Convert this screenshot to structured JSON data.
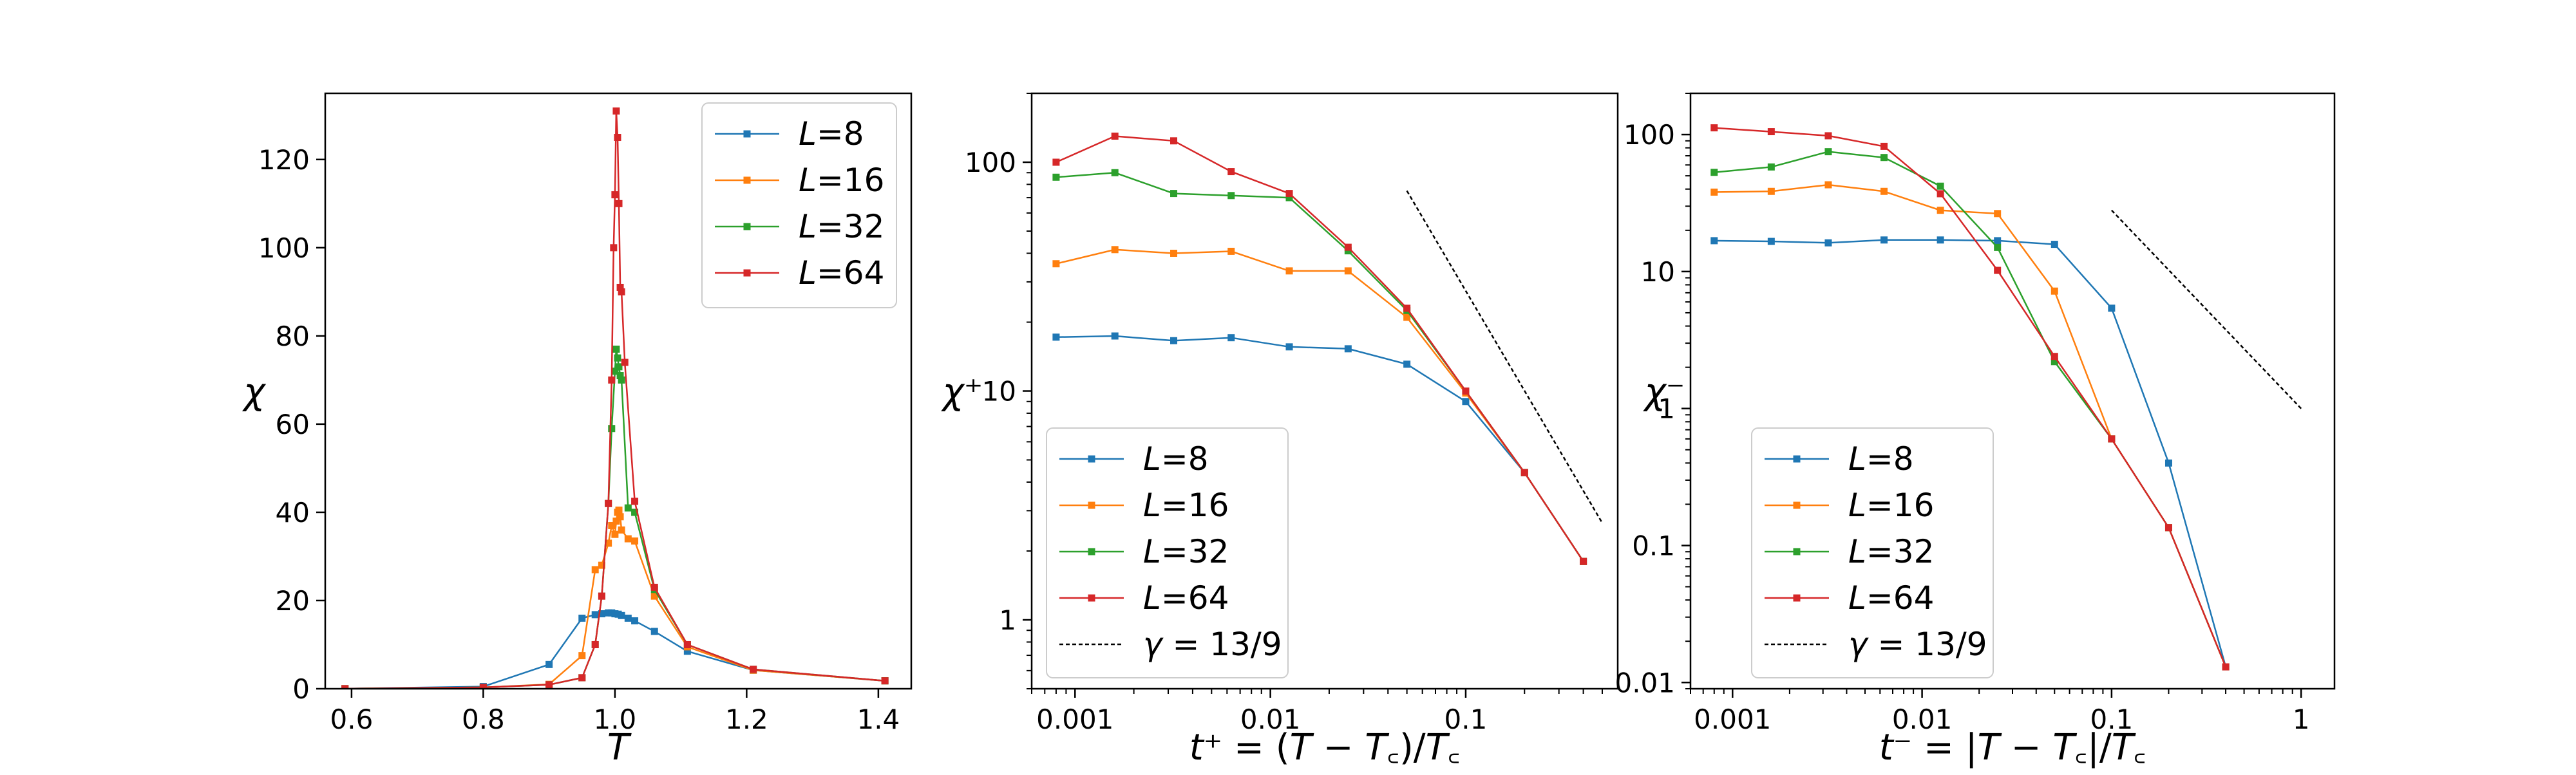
{
  "figure": {
    "background": "#ffffff"
  },
  "chart_data": [
    {
      "type": "line",
      "xlabel": "T",
      "ylabel": "χ",
      "xscale": "linear",
      "yscale": "linear",
      "xlim": [
        0.56,
        1.45
      ],
      "ylim": [
        0,
        135
      ],
      "xticks": [
        0.6,
        0.8,
        1.0,
        1.2,
        1.4
      ],
      "xtick_labels": [
        "0.6",
        "0.8",
        "1.0",
        "1.2",
        "1.4"
      ],
      "yticks": [
        0,
        20,
        40,
        60,
        80,
        100,
        120
      ],
      "ytick_labels": [
        "0",
        "20",
        "40",
        "60",
        "80",
        "100",
        "120"
      ],
      "grid": false,
      "legend_position": "top-right",
      "series": [
        {
          "name": "L=8",
          "color": "#1f77b4",
          "x": [
            0.59,
            0.8,
            0.9,
            0.95,
            0.97,
            0.98,
            0.99,
            0.995,
            1.0,
            1.005,
            1.01,
            1.02,
            1.03,
            1.06,
            1.11,
            1.21,
            1.41
          ],
          "y": [
            0.02,
            0.5,
            5.5,
            16.0,
            16.8,
            17.0,
            17.2,
            17.2,
            17.0,
            16.9,
            16.6,
            16.0,
            15.4,
            13.0,
            8.5,
            4.2,
            1.8
          ]
        },
        {
          "name": "L=16",
          "color": "#ff7f0e",
          "x": [
            0.59,
            0.8,
            0.9,
            0.95,
            0.97,
            0.98,
            0.99,
            0.995,
            1.0,
            1.002,
            1.004,
            1.006,
            1.008,
            1.01,
            1.02,
            1.03,
            1.06,
            1.11,
            1.21,
            1.41
          ],
          "y": [
            0.02,
            0.3,
            1.0,
            7.5,
            27.0,
            28.0,
            33.0,
            37.0,
            35.0,
            38.0,
            40.0,
            40.5,
            39.0,
            36.0,
            34.0,
            33.5,
            21.0,
            9.5,
            4.2,
            1.8
          ]
        },
        {
          "name": "L=32",
          "color": "#2ca02c",
          "x": [
            0.59,
            0.8,
            0.9,
            0.95,
            0.97,
            0.98,
            0.99,
            0.995,
            1.0,
            1.002,
            1.004,
            1.006,
            1.008,
            1.01,
            1.02,
            1.03,
            1.06,
            1.11,
            1.21,
            1.41
          ],
          "y": [
            0.02,
            0.3,
            0.9,
            2.5,
            10.0,
            21.0,
            42.0,
            59.0,
            72.0,
            77.0,
            75.0,
            73.0,
            71.0,
            70.0,
            41.0,
            40.0,
            22.5,
            10.0,
            4.4,
            1.8
          ]
        },
        {
          "name": "L=64",
          "color": "#d62728",
          "x": [
            0.59,
            0.8,
            0.9,
            0.95,
            0.97,
            0.98,
            0.99,
            0.995,
            0.998,
            1.0,
            1.002,
            1.004,
            1.006,
            1.008,
            1.01,
            1.015,
            1.03,
            1.06,
            1.11,
            1.21,
            1.41
          ],
          "y": [
            0.02,
            0.3,
            0.9,
            2.5,
            10.0,
            21.0,
            42.0,
            70.0,
            100.0,
            112.0,
            131.0,
            125.0,
            110.0,
            91.0,
            90.0,
            74.0,
            42.5,
            23.0,
            10.0,
            4.4,
            1.8
          ]
        }
      ]
    },
    {
      "type": "line",
      "xlabel": "t⁺ = (T − T꜀)/T꜀",
      "ylabel": "χ⁺",
      "xscale": "log",
      "yscale": "log",
      "xlim": [
        0.0006,
        0.6
      ],
      "ylim": [
        0.5,
        200
      ],
      "xticks": [
        0.001,
        0.01,
        0.1
      ],
      "xtick_labels": [
        "0.001",
        "0.01",
        "0.1"
      ],
      "yticks": [
        1,
        10,
        100
      ],
      "ytick_labels": [
        "1",
        "10",
        "100"
      ],
      "grid": false,
      "legend_position": "bottom-left",
      "series": [
        {
          "name": "L=8",
          "color": "#1f77b4",
          "x": [
            0.0008,
            0.0016,
            0.0032,
            0.0063,
            0.0125,
            0.025,
            0.05,
            0.1,
            0.2,
            0.4
          ],
          "y": [
            17.2,
            17.4,
            16.6,
            17.1,
            15.6,
            15.3,
            13.1,
            9.0,
            4.4,
            1.8
          ]
        },
        {
          "name": "L=16",
          "color": "#ff7f0e",
          "x": [
            0.0008,
            0.0016,
            0.0032,
            0.0063,
            0.0125,
            0.025,
            0.05,
            0.1,
            0.2,
            0.4
          ],
          "y": [
            36.0,
            41.5,
            40.0,
            40.8,
            33.5,
            33.5,
            21.0,
            9.8,
            4.4,
            1.8
          ]
        },
        {
          "name": "L=32",
          "color": "#2ca02c",
          "x": [
            0.0008,
            0.0016,
            0.0032,
            0.0063,
            0.0125,
            0.025,
            0.05,
            0.1,
            0.2,
            0.4
          ],
          "y": [
            86.0,
            90.0,
            73.0,
            71.5,
            70.0,
            41.0,
            22.5,
            10.0,
            4.4,
            1.8
          ]
        },
        {
          "name": "L=64",
          "color": "#d62728",
          "x": [
            0.0008,
            0.0016,
            0.0032,
            0.0063,
            0.0125,
            0.025,
            0.05,
            0.1,
            0.2,
            0.4
          ],
          "y": [
            100.0,
            130.0,
            124.0,
            91.0,
            73.0,
            42.5,
            23.0,
            10.0,
            4.4,
            1.8
          ]
        },
        {
          "name": "γ = 13/9",
          "color": "#000000",
          "style": "dashed",
          "x": [
            0.05,
            0.5
          ],
          "y": [
            75.0,
            2.65
          ]
        }
      ]
    },
    {
      "type": "line",
      "xlabel": "t⁻ = |T − T꜀|/T꜀",
      "ylabel": "χ⁻",
      "xscale": "log",
      "yscale": "log",
      "xlim": [
        0.0006,
        1.5
      ],
      "ylim": [
        0.009,
        200
      ],
      "xticks": [
        0.001,
        0.01,
        0.1,
        1
      ],
      "xtick_labels": [
        "0.001",
        "0.01",
        "0.1",
        "1"
      ],
      "yticks": [
        0.01,
        0.1,
        1,
        10,
        100
      ],
      "ytick_labels": [
        "0.01",
        "0.1",
        "1",
        "10",
        "100"
      ],
      "grid": false,
      "legend_position": "bottom-left",
      "series": [
        {
          "name": "L=8",
          "color": "#1f77b4",
          "x": [
            0.0008,
            0.0016,
            0.0032,
            0.0063,
            0.0125,
            0.025,
            0.05,
            0.1,
            0.2,
            0.4
          ],
          "y": [
            16.8,
            16.6,
            16.2,
            17.0,
            17.0,
            16.8,
            15.8,
            5.4,
            0.4,
            0.013
          ]
        },
        {
          "name": "L=16",
          "color": "#ff7f0e",
          "x": [
            0.0008,
            0.0016,
            0.0032,
            0.0063,
            0.0125,
            0.025,
            0.05,
            0.1,
            0.2,
            0.4
          ],
          "y": [
            38.0,
            38.5,
            43.0,
            38.5,
            28.0,
            26.5,
            7.2,
            0.6,
            0.135,
            0.013
          ]
        },
        {
          "name": "L=32",
          "color": "#2ca02c",
          "x": [
            0.0008,
            0.0016,
            0.0032,
            0.0063,
            0.0125,
            0.025,
            0.05,
            0.1,
            0.2,
            0.4
          ],
          "y": [
            53.0,
            58.0,
            75.0,
            68.0,
            42.0,
            15.0,
            2.2,
            0.6,
            0.135,
            0.013
          ]
        },
        {
          "name": "L=64",
          "color": "#d62728",
          "x": [
            0.0008,
            0.0016,
            0.0032,
            0.0063,
            0.0125,
            0.025,
            0.05,
            0.1,
            0.2,
            0.4
          ],
          "y": [
            112.0,
            105.0,
            98.0,
            82.0,
            37.0,
            10.2,
            2.4,
            0.6,
            0.135,
            0.013
          ]
        },
        {
          "name": "γ = 13/9",
          "color": "#000000",
          "style": "dashed",
          "x": [
            0.1,
            1.0
          ],
          "y": [
            28.0,
            1.0
          ]
        }
      ]
    }
  ]
}
